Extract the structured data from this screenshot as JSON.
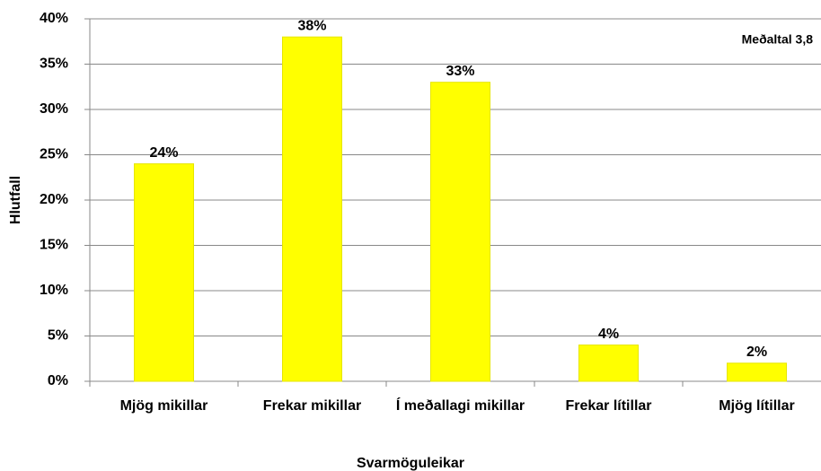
{
  "chart_data": {
    "type": "bar",
    "categories": [
      "Mjög mikillar",
      "Frekar mikillar",
      "Í meðallagi mikillar",
      "Frekar lítillar",
      "Mjög lítillar"
    ],
    "values": [
      24,
      38,
      33,
      4,
      2
    ],
    "value_labels": [
      "24%",
      "38%",
      "33%",
      "4%",
      "2%"
    ],
    "color": "#ffff00",
    "x_label": "Svarmöguleikar",
    "y_label": "Hlutfall",
    "annotation": "Meðaltal 3,8",
    "ylim": [
      0,
      40
    ],
    "yticks": [
      {
        "value": 0,
        "label": "0%"
      },
      {
        "value": 5,
        "label": "5%"
      },
      {
        "value": 10,
        "label": "10%"
      },
      {
        "value": 15,
        "label": "15%"
      },
      {
        "value": 20,
        "label": "20%"
      },
      {
        "value": 25,
        "label": "25%"
      },
      {
        "value": 30,
        "label": "30%"
      },
      {
        "value": 35,
        "label": "35%"
      },
      {
        "value": 40,
        "label": "40%"
      }
    ],
    "grid": true
  }
}
